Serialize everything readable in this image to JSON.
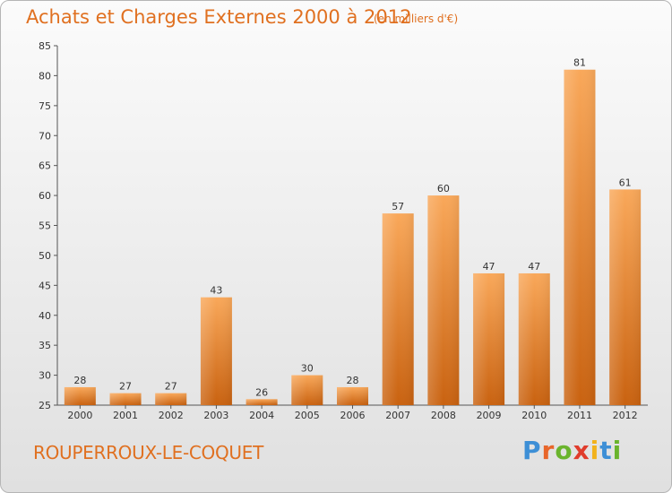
{
  "header": {
    "title": "Achats et Charges Externes 2000 à 2012",
    "subtitle": "(en milliers d'€)"
  },
  "footer": {
    "commune": "ROUPERROUX-LE-COQUET",
    "logo_letters": [
      "P",
      "r",
      "o",
      "x",
      "i",
      "t",
      "i"
    ],
    "logo_colors": [
      "#3d8fd6",
      "#e8662a",
      "#6ab42d",
      "#e03c2c",
      "#f2b21c",
      "#3d8fd6",
      "#6ab42d"
    ]
  },
  "colors": {
    "bar_top": "#f9a85a",
    "bar_bottom": "#c96210",
    "accent": "#e07020"
  },
  "chart_data": {
    "type": "bar",
    "title": "Achats et Charges Externes 2000 à 2012",
    "subtitle": "(en milliers d'€)",
    "categories": [
      "2000",
      "2001",
      "2002",
      "2003",
      "2004",
      "2005",
      "2006",
      "2007",
      "2008",
      "2009",
      "2010",
      "2011",
      "2012"
    ],
    "values": [
      28,
      27,
      27,
      43,
      26,
      30,
      28,
      57,
      60,
      47,
      47,
      81,
      61
    ],
    "ylim": [
      25,
      85
    ],
    "yticks": [
      25,
      30,
      35,
      40,
      45,
      50,
      55,
      60,
      65,
      70,
      75,
      80,
      85
    ],
    "grid": false,
    "xlabel": "",
    "ylabel": ""
  }
}
